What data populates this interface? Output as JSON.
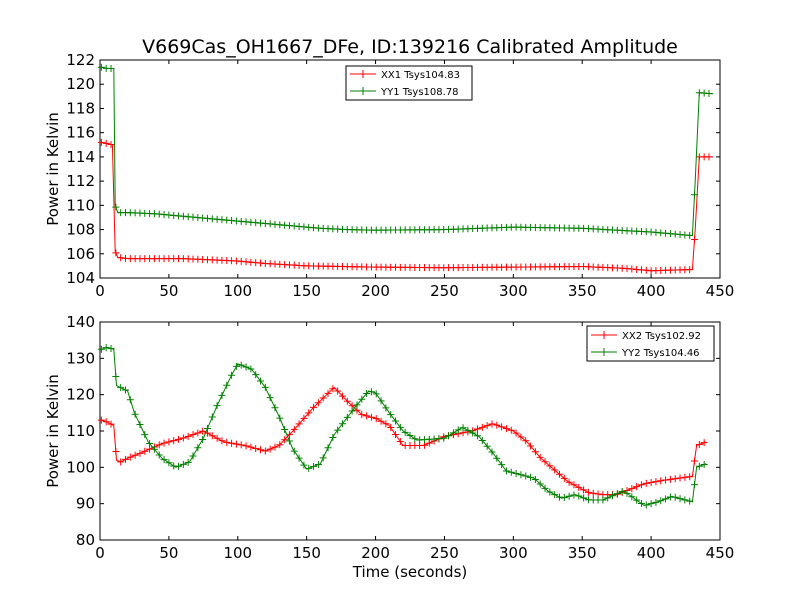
{
  "chart_data": [
    {
      "type": "line",
      "title": "V669Cas_OH1667_DFe, ID:139216 Calibrated Amplitude",
      "xlabel": "",
      "ylabel": "Power in Kelvin",
      "xlim": [
        0,
        450
      ],
      "ylim": [
        104,
        122
      ],
      "xticks": [
        0,
        50,
        100,
        150,
        200,
        250,
        300,
        350,
        400,
        450
      ],
      "yticks": [
        104,
        106,
        108,
        110,
        112,
        114,
        116,
        118,
        120,
        122
      ],
      "legend_position": "upper-center",
      "series": [
        {
          "name": "XX1 Tsys104.83",
          "color": "#ff0000",
          "points": [
            [
              1,
              115.2
            ],
            [
              5,
              115.1
            ],
            [
              9,
              115
            ],
            [
              11,
              106.2
            ],
            [
              13,
              105.7
            ],
            [
              20,
              105.6
            ],
            [
              40,
              105.6
            ],
            [
              60,
              105.6
            ],
            [
              80,
              105.5
            ],
            [
              100,
              105.4
            ],
            [
              120,
              105.2
            ],
            [
              150,
              105.0
            ],
            [
              200,
              104.9
            ],
            [
              250,
              104.85
            ],
            [
              300,
              104.9
            ],
            [
              350,
              104.95
            ],
            [
              380,
              104.8
            ],
            [
              400,
              104.6
            ],
            [
              430,
              104.7
            ],
            [
              432,
              108
            ],
            [
              435,
              114
            ],
            [
              445,
              114
            ]
          ]
        },
        {
          "name": "YY1 Tsys108.78",
          "color": "#008000",
          "points": [
            [
              1,
              121.4
            ],
            [
              5,
              121.3
            ],
            [
              10,
              121.3
            ],
            [
              11,
              110
            ],
            [
              13,
              109.4
            ],
            [
              20,
              109.4
            ],
            [
              40,
              109.3
            ],
            [
              60,
              109.1
            ],
            [
              80,
              108.9
            ],
            [
              100,
              108.7
            ],
            [
              120,
              108.5
            ],
            [
              140,
              108.3
            ],
            [
              160,
              108.1
            ],
            [
              180,
              108.0
            ],
            [
              200,
              107.95
            ],
            [
              250,
              108.0
            ],
            [
              300,
              108.2
            ],
            [
              350,
              108.1
            ],
            [
              400,
              107.8
            ],
            [
              430,
              107.5
            ],
            [
              432,
              112
            ],
            [
              435,
              119.3
            ],
            [
              445,
              119.2
            ]
          ]
        }
      ]
    },
    {
      "type": "line",
      "title": "",
      "xlabel": "Time (seconds)",
      "ylabel": "Power in Kelvin",
      "xlim": [
        0,
        450
      ],
      "ylim": [
        80,
        140
      ],
      "xticks": [
        0,
        50,
        100,
        150,
        200,
        250,
        300,
        350,
        400,
        450
      ],
      "yticks": [
        80,
        90,
        100,
        110,
        120,
        130,
        140
      ],
      "legend_position": "upper-right",
      "series": [
        {
          "name": "XX2 Tsys102.92",
          "color": "#ff0000",
          "points": [
            [
              1,
              113
            ],
            [
              5,
              112.5
            ],
            [
              10,
              111.5
            ],
            [
              12,
              102
            ],
            [
              15,
              101.5
            ],
            [
              20,
              102.5
            ],
            [
              30,
              104
            ],
            [
              45,
              106.5
            ],
            [
              60,
              108
            ],
            [
              75,
              110
            ],
            [
              90,
              107
            ],
            [
              105,
              106
            ],
            [
              120,
              104.5
            ],
            [
              130,
              106
            ],
            [
              140,
              110
            ],
            [
              155,
              116.5
            ],
            [
              170,
              122
            ],
            [
              180,
              118
            ],
            [
              190,
              114.5
            ],
            [
              200,
              113.5
            ],
            [
              210,
              111.5
            ],
            [
              220,
              106
            ],
            [
              235,
              106
            ],
            [
              250,
              108.5
            ],
            [
              270,
              110
            ],
            [
              285,
              112
            ],
            [
              300,
              110
            ],
            [
              310,
              107
            ],
            [
              320,
              102.5
            ],
            [
              340,
              96
            ],
            [
              355,
              93
            ],
            [
              365,
              92.5
            ],
            [
              375,
              92.5
            ],
            [
              385,
              94
            ],
            [
              395,
              95.5
            ],
            [
              410,
              96.5
            ],
            [
              430,
              97.5
            ],
            [
              433,
              106
            ],
            [
              440,
              107
            ]
          ]
        },
        {
          "name": "YY2 Tsys104.46",
          "color": "#008000",
          "points": [
            [
              1,
              132.5
            ],
            [
              5,
              133
            ],
            [
              10,
              132.5
            ],
            [
              12,
              122.5
            ],
            [
              20,
              121
            ],
            [
              25,
              115
            ],
            [
              35,
              107
            ],
            [
              45,
              102.5
            ],
            [
              55,
              100
            ],
            [
              65,
              101.5
            ],
            [
              75,
              108
            ],
            [
              85,
              117
            ],
            [
              95,
              125
            ],
            [
              100,
              128.5
            ],
            [
              110,
              127
            ],
            [
              120,
              122
            ],
            [
              130,
              114
            ],
            [
              140,
              105
            ],
            [
              150,
              99.5
            ],
            [
              160,
              101
            ],
            [
              170,
              109
            ],
            [
              185,
              116.5
            ],
            [
              195,
              121
            ],
            [
              200,
              120.5
            ],
            [
              210,
              115
            ],
            [
              220,
              110
            ],
            [
              230,
              107.5
            ],
            [
              250,
              108
            ],
            [
              263,
              111
            ],
            [
              275,
              108.5
            ],
            [
              285,
              104
            ],
            [
              295,
              99
            ],
            [
              305,
              98
            ],
            [
              315,
              97
            ],
            [
              325,
              93.5
            ],
            [
              335,
              91.5
            ],
            [
              345,
              92.5
            ],
            [
              355,
              91
            ],
            [
              365,
              91
            ],
            [
              380,
              93.5
            ],
            [
              395,
              89.5
            ],
            [
              405,
              90.5
            ],
            [
              415,
              92
            ],
            [
              425,
              91
            ],
            [
              430,
              90.5
            ],
            [
              433,
              100
            ],
            [
              440,
              101
            ]
          ]
        }
      ]
    }
  ]
}
